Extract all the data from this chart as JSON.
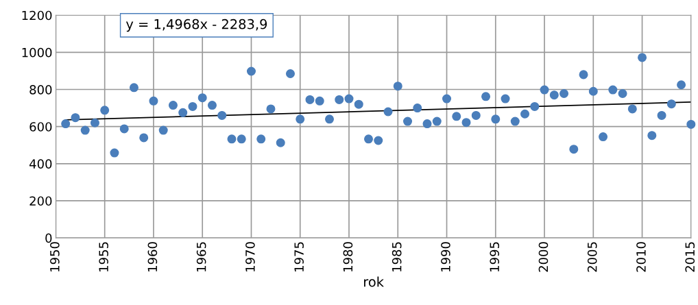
{
  "chart_data": {
    "type": "scatter",
    "xlabel": "rok",
    "annotations": [
      "y = 1,4968x - 2283,9"
    ],
    "xlim": [
      1950,
      2015
    ],
    "xticks": [
      1950,
      1955,
      1960,
      1965,
      1970,
      1975,
      1980,
      1985,
      1990,
      1995,
      2000,
      2005,
      2010,
      2015
    ],
    "ylim": [
      0,
      1200
    ],
    "yticks": [
      0,
      200,
      400,
      600,
      800,
      1000,
      1200
    ],
    "grid": true,
    "marker": "circle",
    "x": [
      1951,
      1952,
      1953,
      1954,
      1955,
      1956,
      1957,
      1958,
      1959,
      1960,
      1961,
      1962,
      1963,
      1964,
      1965,
      1966,
      1967,
      1968,
      1969,
      1970,
      1971,
      1972,
      1973,
      1974,
      1975,
      1976,
      1977,
      1978,
      1979,
      1980,
      1981,
      1982,
      1983,
      1984,
      1985,
      1986,
      1987,
      1988,
      1989,
      1990,
      1991,
      1992,
      1993,
      1994,
      1995,
      1996,
      1997,
      1998,
      1999,
      2000,
      2001,
      2002,
      2003,
      2004,
      2005,
      2006,
      2007,
      2008,
      2009,
      2010,
      2011,
      2012,
      2013,
      2014,
      2015
    ],
    "series": [
      {
        "color": "#4a7ebb",
        "values": [
          615,
          648,
          580,
          620,
          688,
          458,
          588,
          810,
          540,
          738,
          580,
          715,
          675,
          708,
          755,
          715,
          660,
          533,
          533,
          898,
          533,
          695,
          513,
          885,
          640,
          745,
          738,
          640,
          745,
          750,
          720,
          533,
          525,
          680,
          818,
          628,
          700,
          615,
          628,
          750,
          655,
          622,
          660,
          762,
          640,
          750,
          628,
          668,
          708,
          798,
          770,
          778,
          478,
          880,
          790,
          545,
          798,
          778,
          695,
          972,
          552,
          660,
          722,
          825,
          612
        ]
      },
      {
        "type": "line",
        "color": "#000000",
        "x": [
          1951,
          2015
        ],
        "values": [
          636,
          732
        ],
        "marker": "none"
      }
    ]
  }
}
